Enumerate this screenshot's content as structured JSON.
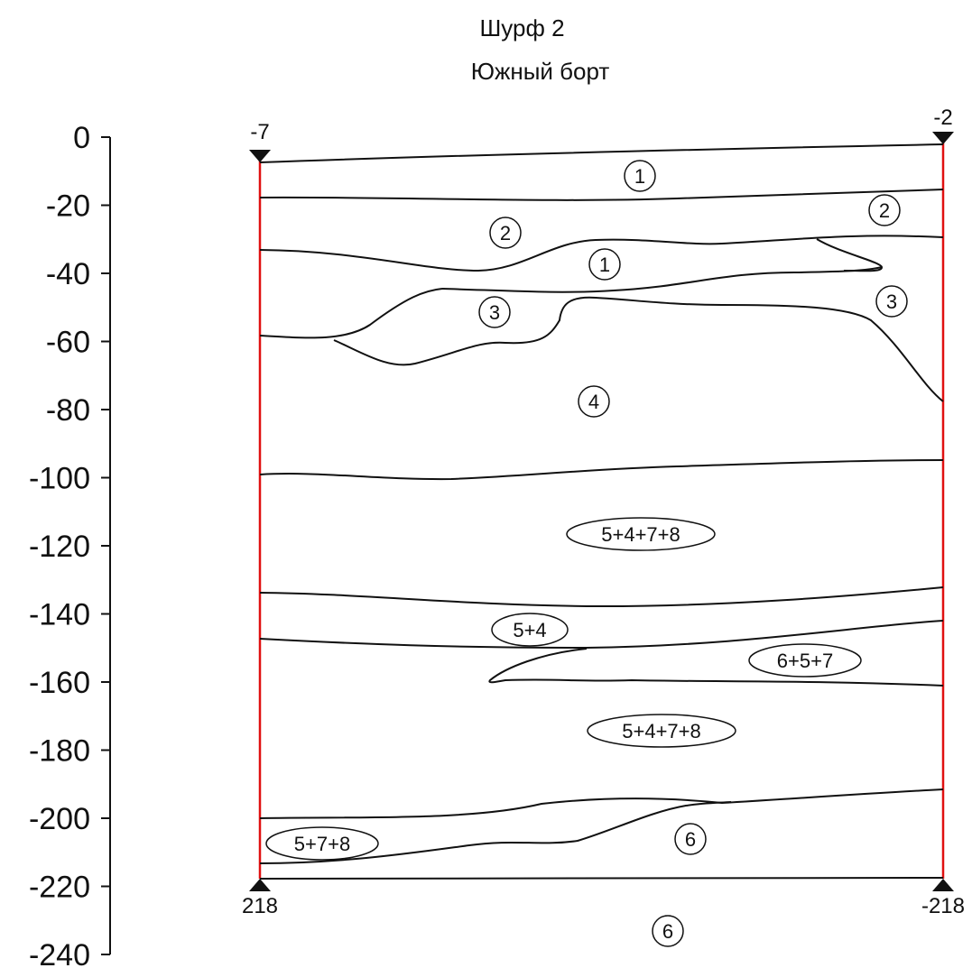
{
  "title": "Шурф 2",
  "subtitle": "Южный борт",
  "axis": {
    "ticks": [
      "0",
      "-20",
      "-40",
      "-60",
      "-80",
      "-100",
      "-120",
      "-140",
      "-160",
      "-180",
      "-200",
      "-220",
      "-240"
    ]
  },
  "markers": {
    "top_left": "-7",
    "top_right": "-2",
    "bottom_left": "218",
    "bottom_right": "-218"
  },
  "layers": [
    {
      "label": "1",
      "shape": "circle"
    },
    {
      "label": "2",
      "shape": "circle"
    },
    {
      "label": "2",
      "shape": "circle"
    },
    {
      "label": "1",
      "shape": "circle"
    },
    {
      "label": "3",
      "shape": "circle"
    },
    {
      "label": "3",
      "shape": "circle"
    },
    {
      "label": "4",
      "shape": "circle"
    },
    {
      "label": "5+4+7+8",
      "shape": "ellipse"
    },
    {
      "label": "5+4",
      "shape": "ellipse"
    },
    {
      "label": "6+5+7",
      "shape": "ellipse"
    },
    {
      "label": "5+4+7+8",
      "shape": "ellipse"
    },
    {
      "label": "5+7+8",
      "shape": "ellipse"
    },
    {
      "label": "6",
      "shape": "circle"
    },
    {
      "label": "6",
      "shape": "circle"
    }
  ],
  "colors": {
    "boundary": "#111111",
    "side_walls": "#e01010"
  }
}
